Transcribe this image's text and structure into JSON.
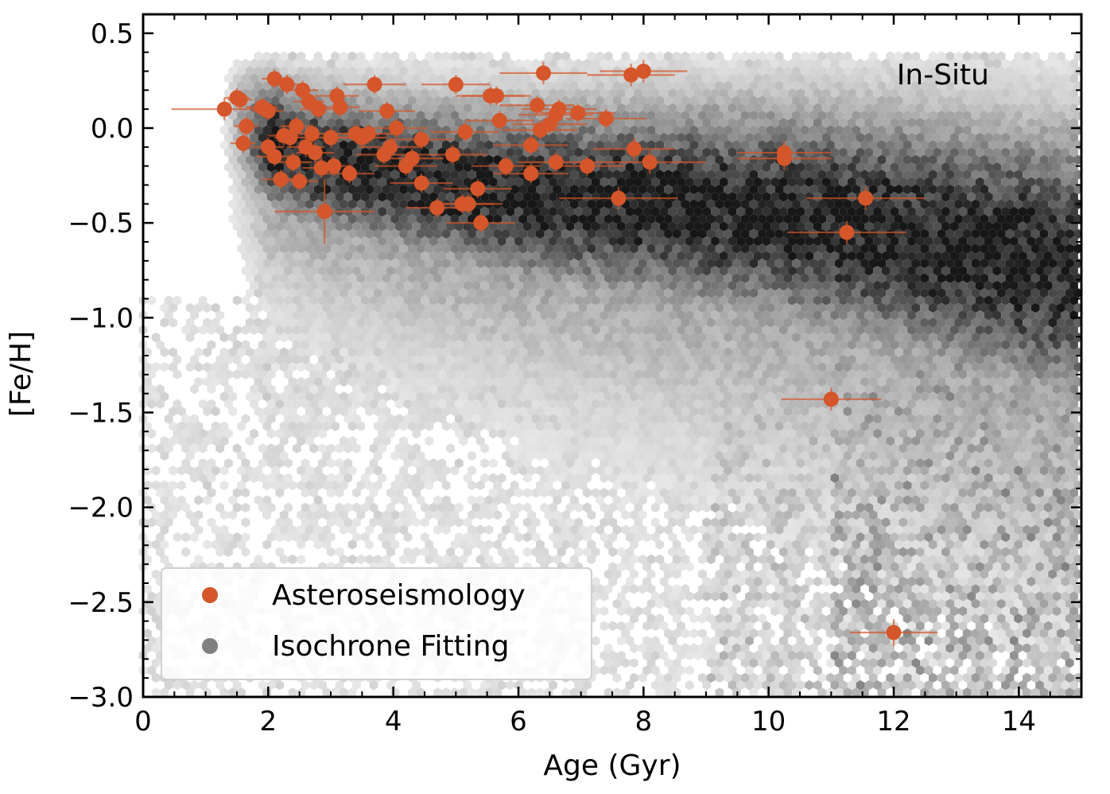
{
  "chart_data": {
    "type": "scatter",
    "xlabel": "Age (Gyr)",
    "ylabel": "[Fe/H]",
    "xlim": [
      0,
      15
    ],
    "ylim": [
      -3.0,
      0.6
    ],
    "xticks": [
      0,
      2,
      4,
      6,
      8,
      10,
      12,
      14
    ],
    "xtick_labels": [
      "0",
      "2",
      "4",
      "6",
      "8",
      "10",
      "12",
      "14"
    ],
    "yticks": [
      0.5,
      0.0,
      -0.5,
      -1.0,
      -1.5,
      -2.0,
      -2.5,
      -3.0
    ],
    "ytick_labels": [
      "0.5",
      "0.0",
      "−0.5",
      "−1.0",
      "−1.5",
      "−2.0",
      "−2.5",
      "−3.0"
    ],
    "annotation": "In-Situ",
    "legend": {
      "placement": "lower-left",
      "entries": [
        {
          "label": "Asteroseismology",
          "color": "#d4562a"
        },
        {
          "label": "Isochrone Fitting",
          "color": "#808080"
        }
      ]
    },
    "colors": {
      "points": "#d4562a",
      "errorbars": "#d4562a",
      "density": "#000000"
    },
    "density_ridge": [
      {
        "x": 1.5,
        "y": 0.0
      },
      {
        "x": 2.5,
        "y": -0.15
      },
      {
        "x": 4.0,
        "y": -0.25
      },
      {
        "x": 6.0,
        "y": -0.35
      },
      {
        "x": 8.0,
        "y": -0.4
      },
      {
        "x": 10.0,
        "y": -0.45
      },
      {
        "x": 12.0,
        "y": -0.55
      },
      {
        "x": 13.5,
        "y": -0.65
      },
      {
        "x": 15.0,
        "y": -0.75
      }
    ],
    "series": [
      {
        "name": "Asteroseismology",
        "points": [
          {
            "x": 1.3,
            "y": 0.1,
            "xerr": 0.85,
            "yerr": 0.06
          },
          {
            "x": 1.5,
            "y": 0.16,
            "xerr": 0.2,
            "yerr": 0.05
          },
          {
            "x": 1.55,
            "y": 0.15,
            "xerr": 0.2,
            "yerr": 0.05
          },
          {
            "x": 1.6,
            "y": -0.08,
            "xerr": 0.2,
            "yerr": 0.05
          },
          {
            "x": 1.65,
            "y": 0.01,
            "xerr": 0.2,
            "yerr": 0.05
          },
          {
            "x": 1.9,
            "y": 0.11,
            "xerr": 0.25,
            "yerr": 0.05
          },
          {
            "x": 2.0,
            "y": 0.09,
            "xerr": 0.25,
            "yerr": 0.05
          },
          {
            "x": 2.1,
            "y": 0.26,
            "xerr": 0.2,
            "yerr": 0.05
          },
          {
            "x": 2.0,
            "y": -0.1,
            "xerr": 0.25,
            "yerr": 0.05
          },
          {
            "x": 2.1,
            "y": -0.15,
            "xerr": 0.3,
            "yerr": 0.05
          },
          {
            "x": 2.2,
            "y": -0.27,
            "xerr": 0.3,
            "yerr": 0.05
          },
          {
            "x": 2.25,
            "y": -0.04,
            "xerr": 0.25,
            "yerr": 0.05
          },
          {
            "x": 2.3,
            "y": 0.23,
            "xerr": 0.2,
            "yerr": 0.05
          },
          {
            "x": 2.35,
            "y": -0.05,
            "xerr": 0.25,
            "yerr": 0.05
          },
          {
            "x": 2.4,
            "y": -0.18,
            "xerr": 0.3,
            "yerr": 0.05
          },
          {
            "x": 2.45,
            "y": 0.01,
            "xerr": 0.25,
            "yerr": 0.05
          },
          {
            "x": 2.5,
            "y": -0.28,
            "xerr": 0.3,
            "yerr": 0.05
          },
          {
            "x": 2.55,
            "y": 0.2,
            "xerr": 0.25,
            "yerr": 0.05
          },
          {
            "x": 2.6,
            "y": -0.1,
            "xerr": 0.3,
            "yerr": 0.05
          },
          {
            "x": 2.65,
            "y": 0.14,
            "xerr": 0.25,
            "yerr": 0.05
          },
          {
            "x": 2.7,
            "y": -0.03,
            "xerr": 0.3,
            "yerr": 0.05
          },
          {
            "x": 2.75,
            "y": -0.13,
            "xerr": 0.3,
            "yerr": 0.05
          },
          {
            "x": 2.8,
            "y": 0.1,
            "xerr": 0.3,
            "yerr": 0.05
          },
          {
            "x": 2.85,
            "y": -0.21,
            "xerr": 0.3,
            "yerr": 0.05
          },
          {
            "x": 2.9,
            "y": -0.44,
            "xerr": 0.8,
            "yerr": 0.17
          },
          {
            "x": 3.0,
            "y": -0.05,
            "xerr": 0.35,
            "yerr": 0.05
          },
          {
            "x": 3.05,
            "y": -0.2,
            "xerr": 0.3,
            "yerr": 0.05
          },
          {
            "x": 3.1,
            "y": 0.17,
            "xerr": 0.35,
            "yerr": 0.05
          },
          {
            "x": 3.15,
            "y": 0.11,
            "xerr": 0.3,
            "yerr": 0.05
          },
          {
            "x": 3.3,
            "y": -0.24,
            "xerr": 0.4,
            "yerr": 0.05
          },
          {
            "x": 3.4,
            "y": -0.03,
            "xerr": 0.4,
            "yerr": 0.05
          },
          {
            "x": 3.5,
            "y": -0.05,
            "xerr": 0.4,
            "yerr": 0.05
          },
          {
            "x": 3.6,
            "y": -0.03,
            "xerr": 0.4,
            "yerr": 0.05
          },
          {
            "x": 3.7,
            "y": 0.23,
            "xerr": 0.5,
            "yerr": 0.05
          },
          {
            "x": 3.85,
            "y": -0.14,
            "xerr": 0.45,
            "yerr": 0.05
          },
          {
            "x": 3.9,
            "y": 0.09,
            "xerr": 0.45,
            "yerr": 0.05
          },
          {
            "x": 3.95,
            "y": -0.1,
            "xerr": 0.5,
            "yerr": 0.05
          },
          {
            "x": 4.05,
            "y": 0.0,
            "xerr": 0.5,
            "yerr": 0.05
          },
          {
            "x": 4.2,
            "y": -0.2,
            "xerr": 0.5,
            "yerr": 0.05
          },
          {
            "x": 4.3,
            "y": -0.16,
            "xerr": 0.5,
            "yerr": 0.05
          },
          {
            "x": 4.45,
            "y": -0.06,
            "xerr": 0.5,
            "yerr": 0.05
          },
          {
            "x": 4.45,
            "y": -0.29,
            "xerr": 0.5,
            "yerr": 0.05
          },
          {
            "x": 4.7,
            "y": -0.42,
            "xerr": 0.5,
            "yerr": 0.05
          },
          {
            "x": 4.95,
            "y": -0.14,
            "xerr": 0.55,
            "yerr": 0.05
          },
          {
            "x": 5.0,
            "y": 0.23,
            "xerr": 0.55,
            "yerr": 0.05
          },
          {
            "x": 5.1,
            "y": -0.4,
            "xerr": 0.5,
            "yerr": 0.05
          },
          {
            "x": 5.15,
            "y": -0.02,
            "xerr": 0.55,
            "yerr": 0.05
          },
          {
            "x": 5.2,
            "y": -0.4,
            "xerr": 0.55,
            "yerr": 0.05
          },
          {
            "x": 5.35,
            "y": -0.32,
            "xerr": 0.55,
            "yerr": 0.05
          },
          {
            "x": 5.4,
            "y": -0.5,
            "xerr": 0.55,
            "yerr": 0.05
          },
          {
            "x": 5.55,
            "y": 0.17,
            "xerr": 0.55,
            "yerr": 0.05
          },
          {
            "x": 5.65,
            "y": 0.17,
            "xerr": 0.55,
            "yerr": 0.05
          },
          {
            "x": 5.7,
            "y": 0.04,
            "xerr": 0.55,
            "yerr": 0.05
          },
          {
            "x": 5.8,
            "y": -0.2,
            "xerr": 0.55,
            "yerr": 0.05
          },
          {
            "x": 6.2,
            "y": -0.09,
            "xerr": 0.6,
            "yerr": 0.05
          },
          {
            "x": 6.2,
            "y": -0.24,
            "xerr": 0.6,
            "yerr": 0.05
          },
          {
            "x": 6.3,
            "y": 0.12,
            "xerr": 0.6,
            "yerr": 0.05
          },
          {
            "x": 6.35,
            "y": -0.01,
            "xerr": 0.6,
            "yerr": 0.05
          },
          {
            "x": 6.4,
            "y": 0.29,
            "xerr": 0.7,
            "yerr": 0.06
          },
          {
            "x": 6.5,
            "y": 0.02,
            "xerr": 0.6,
            "yerr": 0.05
          },
          {
            "x": 6.6,
            "y": -0.18,
            "xerr": 0.6,
            "yerr": 0.05
          },
          {
            "x": 6.6,
            "y": 0.07,
            "xerr": 0.6,
            "yerr": 0.05
          },
          {
            "x": 6.65,
            "y": 0.1,
            "xerr": 0.6,
            "yerr": 0.05
          },
          {
            "x": 6.95,
            "y": 0.08,
            "xerr": 0.6,
            "yerr": 0.05
          },
          {
            "x": 7.1,
            "y": -0.2,
            "xerr": 0.6,
            "yerr": 0.05
          },
          {
            "x": 7.4,
            "y": 0.05,
            "xerr": 0.65,
            "yerr": 0.05
          },
          {
            "x": 7.6,
            "y": -0.37,
            "xerr": 0.95,
            "yerr": 0.06
          },
          {
            "x": 7.8,
            "y": 0.28,
            "xerr": 0.7,
            "yerr": 0.06
          },
          {
            "x": 7.85,
            "y": -0.11,
            "xerr": 0.65,
            "yerr": 0.06
          },
          {
            "x": 8.0,
            "y": 0.3,
            "xerr": 0.7,
            "yerr": 0.06
          },
          {
            "x": 8.1,
            "y": -0.18,
            "xerr": 0.9,
            "yerr": 0.06
          },
          {
            "x": 10.25,
            "y": -0.13,
            "xerr": 0.75,
            "yerr": 0.06
          },
          {
            "x": 10.25,
            "y": -0.16,
            "xerr": 0.75,
            "yerr": 0.06
          },
          {
            "x": 11.0,
            "y": -1.43,
            "xerr": 0.8,
            "yerr": 0.06
          },
          {
            "x": 11.25,
            "y": -0.55,
            "xerr": 0.95,
            "yerr": 0.06
          },
          {
            "x": 11.55,
            "y": -0.37,
            "xerr": 0.95,
            "yerr": 0.06
          },
          {
            "x": 12.0,
            "y": -2.66,
            "xerr": 0.7,
            "yerr": 0.07
          }
        ]
      }
    ]
  }
}
